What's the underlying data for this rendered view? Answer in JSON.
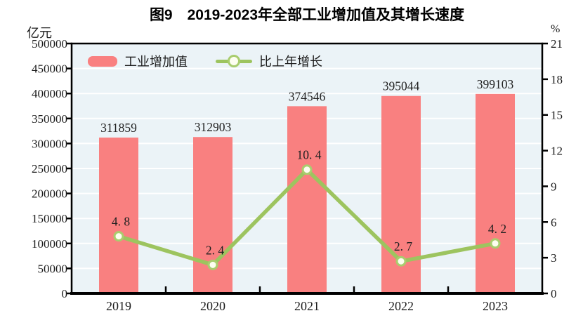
{
  "title": "图9　2019-2023年全部工业增加值及其增长速度",
  "left_axis": {
    "unit": "亿元",
    "tick_labels": [
      "500000",
      "450000",
      "400000",
      "350000",
      "300000",
      "250000",
      "200000",
      "150000",
      "100000",
      "50000",
      "0"
    ],
    "min": 0,
    "max": 500000,
    "step": 50000
  },
  "right_axis": {
    "unit": "%",
    "tick_labels": [
      "21",
      "18",
      "15",
      "12",
      "9",
      "6",
      "3",
      "0"
    ],
    "min": 0,
    "max": 21,
    "step": 3
  },
  "legend": {
    "items": [
      {
        "label": "工业增加值",
        "series": "bar",
        "color": "#F98080"
      },
      {
        "label": "比上年增长",
        "series": "line",
        "color": "#9DC45F"
      }
    ],
    "position": "top-left-inside"
  },
  "chart_data": {
    "type": "bar",
    "combo": "bar+line",
    "title": "图9　2019-2023年全部工业增加值及其增长速度",
    "categories": [
      "2019",
      "2020",
      "2021",
      "2022",
      "2023"
    ],
    "series": [
      {
        "name": "工业增加值",
        "type": "bar",
        "axis": "left",
        "values": [
          311859,
          312903,
          374546,
          395044,
          399103
        ],
        "value_labels": [
          "311859",
          "312903",
          "374546",
          "395044",
          "399103"
        ],
        "color": "#F98080"
      },
      {
        "name": "比上年增长",
        "type": "line",
        "axis": "right",
        "values": [
          4.8,
          2.4,
          10.4,
          2.7,
          4.2
        ],
        "value_labels": [
          "4. 8",
          "2. 4",
          "10. 4",
          "2. 7",
          "4. 2"
        ],
        "color": "#9DC45F",
        "marker_fill": "#FDFEF0",
        "marker_stroke": "#A9CD6E"
      }
    ],
    "xlabel": "",
    "ylabel_left": "亿元",
    "ylabel_right": "%",
    "left_ylim": [
      0,
      500000
    ],
    "right_ylim": [
      0,
      21
    ],
    "grid": true,
    "plot_bg": "#EBF3F7",
    "grid_color": "#FFFFFF",
    "axis_color": "#000000"
  }
}
